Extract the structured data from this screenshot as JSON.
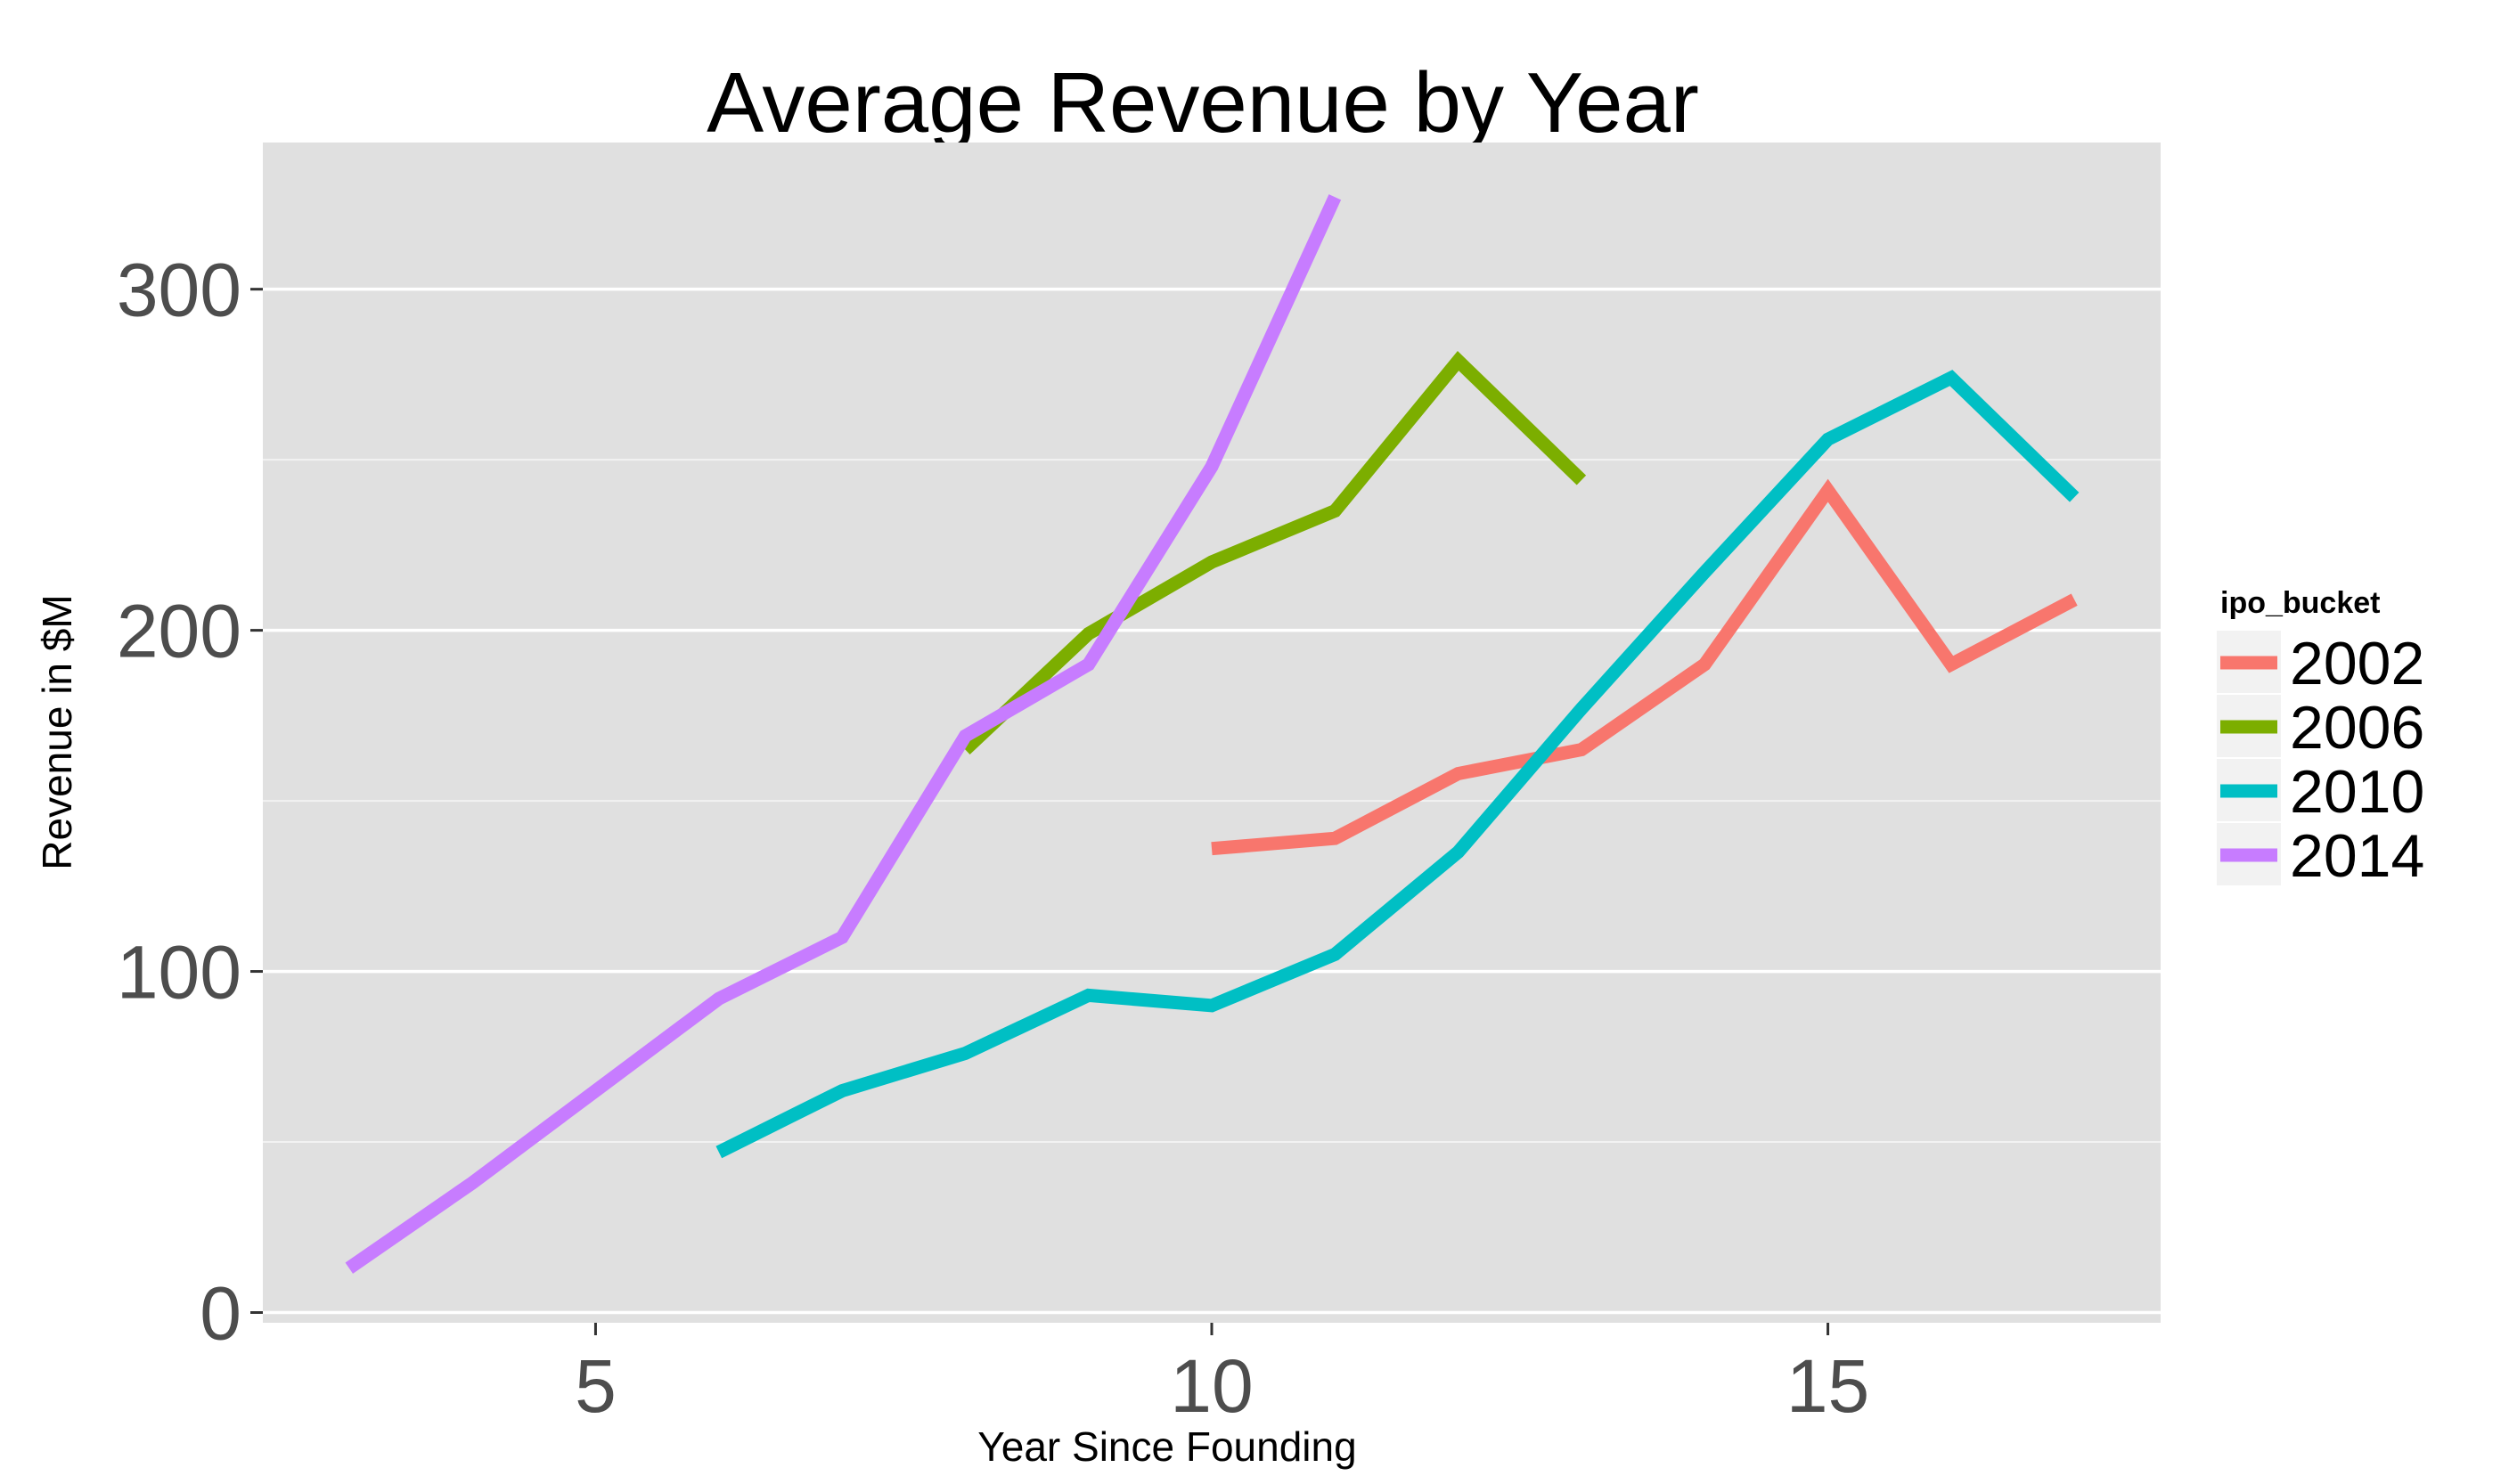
{
  "chart_data": {
    "type": "line",
    "title": "Average Revenue by Year",
    "xlabel": "Year Since Founding",
    "ylabel": "Revenue in $M",
    "xlim": [
      2.3,
      17.7
    ],
    "ylim": [
      -3,
      343
    ],
    "x_ticks": [
      5,
      10,
      15
    ],
    "x_tick_labels": [
      "5",
      "10",
      "15"
    ],
    "y_ticks": [
      0,
      100,
      200,
      300
    ],
    "y_tick_labels": [
      "0",
      "100",
      "200",
      "300"
    ],
    "y_minor_gridlines": [
      50,
      150,
      250
    ],
    "grid": true,
    "legend": {
      "title": "ipo_bucket",
      "position": "right"
    },
    "series": [
      {
        "name": "2002",
        "color": "#F8766D",
        "x": [
          10,
          11,
          12,
          13,
          14,
          15,
          16,
          17
        ],
        "y": [
          136,
          139,
          158,
          165,
          190,
          241,
          190,
          209
        ]
      },
      {
        "name": "2006",
        "color": "#7CAE00",
        "x": [
          8,
          9,
          10,
          11,
          12,
          13
        ],
        "y": [
          165,
          199,
          220,
          235,
          279,
          244
        ]
      },
      {
        "name": "2010",
        "color": "#00BFC4",
        "x": [
          6,
          7,
          8,
          9,
          10,
          11,
          12,
          13,
          14,
          15,
          16,
          17
        ],
        "y": [
          47,
          65,
          76,
          93,
          90,
          105,
          135,
          177,
          217,
          256,
          274,
          239
        ]
      },
      {
        "name": "2014",
        "color": "#C77CFF",
        "x": [
          3,
          4,
          5,
          6,
          7,
          8,
          9,
          10,
          11
        ],
        "y": [
          13,
          38,
          65,
          92,
          110,
          169,
          190,
          248,
          327
        ]
      }
    ]
  }
}
